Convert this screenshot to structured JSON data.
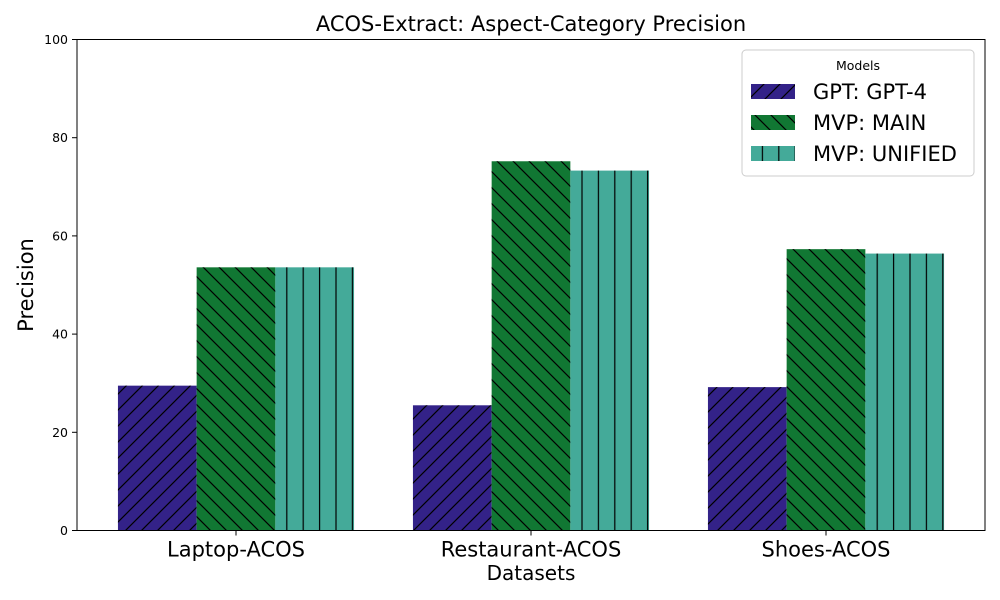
{
  "chart_data": {
    "type": "bar",
    "title": "ACOS-Extract: Aspect-Category Precision",
    "xlabel": "Datasets",
    "ylabel": "Precision",
    "ylim": [
      0,
      100
    ],
    "yticks": [
      "0",
      "20",
      "40",
      "60",
      "80",
      "100"
    ],
    "categories": [
      "Laptop-ACOS",
      "Restaurant-ACOS",
      "Shoes-ACOS"
    ],
    "legend_title": "Models",
    "legend_position": "top-right",
    "series": [
      {
        "name": "GPT: GPT-4",
        "values": [
          29.5,
          25.5,
          29.2
        ],
        "color": "#332288",
        "hatch": "forward-diagonal"
      },
      {
        "name": "MVP: MAIN",
        "values": [
          53.6,
          75.2,
          57.3
        ],
        "color": "#117733",
        "hatch": "backward-diagonal"
      },
      {
        "name": "MVP: UNIFIED",
        "values": [
          53.6,
          73.3,
          56.4
        ],
        "color": "#44AA99",
        "hatch": "vertical"
      }
    ]
  }
}
